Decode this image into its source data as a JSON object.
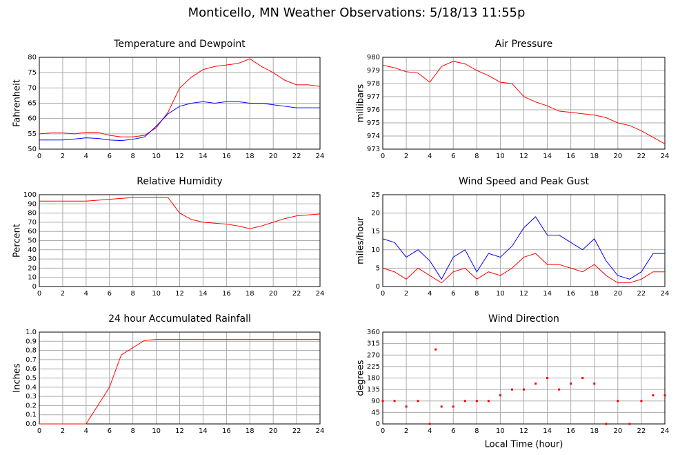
{
  "title": "Monticello, MN Weather Observations: 5/18/13 11:55p",
  "chart_data": [
    {
      "type": "line",
      "title": "Temperature and Dewpoint",
      "ylabel": "Fahrenheit",
      "x": [
        0,
        1,
        2,
        3,
        4,
        5,
        6,
        7,
        8,
        9,
        10,
        11,
        12,
        13,
        14,
        15,
        16,
        17,
        18,
        19,
        20,
        21,
        22,
        23,
        24
      ],
      "series": [
        {
          "color": "#ff0000",
          "values": [
            55,
            55.3,
            55.3,
            55,
            55.5,
            55.5,
            54.5,
            54,
            54,
            54.5,
            57,
            62,
            70,
            73.5,
            76,
            77,
            77.5,
            78,
            79.5,
            77,
            75,
            72.5,
            71,
            71,
            70.5
          ]
        },
        {
          "color": "#0000ff",
          "values": [
            53,
            53,
            53,
            53.3,
            53.7,
            53.5,
            53,
            52.8,
            53.2,
            54,
            57.5,
            61.5,
            64,
            65,
            65.5,
            65,
            65.5,
            65.5,
            65,
            65,
            64.5,
            64,
            63.5,
            63.5,
            63.5
          ]
        }
      ],
      "xlim": [
        0,
        24
      ],
      "xticks": [
        0,
        2,
        4,
        6,
        8,
        10,
        12,
        14,
        16,
        18,
        20,
        22,
        24
      ],
      "ylim": [
        50,
        80
      ],
      "yticks": [
        50,
        55,
        60,
        65,
        70,
        75,
        80
      ],
      "grid": true
    },
    {
      "type": "line",
      "title": "Air Pressure",
      "ylabel": "millibars",
      "x": [
        0,
        1,
        2,
        3,
        4,
        5,
        6,
        7,
        8,
        9,
        10,
        11,
        12,
        13,
        14,
        15,
        16,
        17,
        18,
        19,
        20,
        21,
        22,
        23,
        24
      ],
      "series": [
        {
          "color": "#ff0000",
          "values": [
            979.4,
            979.2,
            978.9,
            978.8,
            978.1,
            979.3,
            979.7,
            979.5,
            979,
            978.6,
            978.1,
            978,
            977,
            976.6,
            976.3,
            975.9,
            975.8,
            975.7,
            975.6,
            975.4,
            975,
            974.8,
            974.4,
            973.9,
            973.4
          ]
        }
      ],
      "xlim": [
        0,
        24
      ],
      "xticks": [
        0,
        2,
        4,
        6,
        8,
        10,
        12,
        14,
        16,
        18,
        20,
        22,
        24
      ],
      "ylim": [
        973,
        980
      ],
      "yticks": [
        973,
        974,
        975,
        976,
        977,
        978,
        979,
        980
      ],
      "grid": true
    },
    {
      "type": "line",
      "title": "Relative Humidity",
      "ylabel": "Percent",
      "x": [
        0,
        1,
        2,
        3,
        4,
        5,
        6,
        7,
        8,
        9,
        10,
        11,
        12,
        13,
        14,
        15,
        16,
        17,
        18,
        19,
        20,
        21,
        22,
        23,
        24
      ],
      "series": [
        {
          "color": "#ff0000",
          "values": [
            93,
            93,
            93,
            93,
            93,
            94,
            95,
            96,
            97,
            97,
            97,
            97,
            80,
            73,
            70,
            69,
            68,
            66,
            63,
            66,
            70,
            74,
            77,
            78,
            79
          ]
        }
      ],
      "xlim": [
        0,
        24
      ],
      "xticks": [
        0,
        2,
        4,
        6,
        8,
        10,
        12,
        14,
        16,
        18,
        20,
        22,
        24
      ],
      "ylim": [
        0,
        100
      ],
      "yticks": [
        0,
        10,
        20,
        30,
        40,
        50,
        60,
        70,
        80,
        90,
        100
      ],
      "grid": true
    },
    {
      "type": "line",
      "title": "Wind Speed and Peak Gust",
      "ylabel": "miles/hour",
      "x": [
        0,
        1,
        2,
        3,
        4,
        5,
        6,
        7,
        8,
        9,
        10,
        11,
        12,
        13,
        14,
        15,
        16,
        17,
        18,
        19,
        20,
        21,
        22,
        23,
        24
      ],
      "series": [
        {
          "color": "#0000ff",
          "values": [
            13,
            12,
            8,
            10,
            7,
            2,
            8,
            10,
            4,
            9,
            8,
            11,
            16,
            19,
            14,
            14,
            12,
            10,
            13,
            7,
            3,
            2,
            4,
            9,
            9
          ]
        },
        {
          "color": "#ff0000",
          "values": [
            5,
            4,
            2,
            5,
            3,
            1,
            4,
            5,
            2,
            4,
            3,
            5,
            8,
            9,
            6,
            6,
            5,
            4,
            6,
            3,
            1,
            1,
            2,
            4,
            4
          ]
        }
      ],
      "xlim": [
        0,
        24
      ],
      "xticks": [
        0,
        2,
        4,
        6,
        8,
        10,
        12,
        14,
        16,
        18,
        20,
        22,
        24
      ],
      "ylim": [
        0,
        25
      ],
      "yticks": [
        0,
        5,
        10,
        15,
        20,
        25
      ],
      "grid": true
    },
    {
      "type": "line",
      "title": "24 hour Accumulated Rainfall",
      "ylabel": "Inches",
      "x": [
        0,
        1,
        2,
        3,
        4,
        5,
        6,
        7,
        8,
        9,
        10,
        11,
        12,
        13,
        14,
        15,
        16,
        17,
        18,
        19,
        20,
        21,
        22,
        23,
        24
      ],
      "series": [
        {
          "color": "#ff0000",
          "values": [
            0,
            0,
            0,
            0,
            0,
            0.2,
            0.4,
            0.75,
            0.83,
            0.91,
            0.92,
            0.92,
            0.92,
            0.92,
            0.92,
            0.92,
            0.92,
            0.92,
            0.92,
            0.92,
            0.92,
            0.92,
            0.92,
            0.92,
            0.92
          ]
        }
      ],
      "xlim": [
        0,
        24
      ],
      "xticks": [
        0,
        2,
        4,
        6,
        8,
        10,
        12,
        14,
        16,
        18,
        20,
        22,
        24
      ],
      "ylim": [
        0,
        1
      ],
      "yticks": [
        {
          "value": 0,
          "label": "0.0"
        },
        0.1,
        0.2,
        0.3,
        0.4,
        0.5,
        0.6,
        0.7,
        0.8,
        0.9,
        {
          "value": 1,
          "label": "1.0"
        }
      ],
      "grid": true
    },
    {
      "type": "scatter",
      "title": "Wind Direction",
      "ylabel": "degrees",
      "xlabel": "Local Time (hour)",
      "x": [
        0,
        1,
        2,
        3,
        4,
        4.5,
        5,
        6,
        7,
        8,
        9,
        10,
        11,
        12,
        13,
        14,
        15,
        16,
        17,
        18,
        19,
        20,
        21,
        22,
        23,
        24
      ],
      "series": [
        {
          "color": "#ff0000",
          "values": [
            90,
            90,
            68,
            90,
            0,
            292,
            68,
            68,
            90,
            90,
            90,
            112,
            135,
            135,
            158,
            180,
            135,
            158,
            180,
            158,
            0,
            90,
            0,
            90,
            112,
            112
          ]
        }
      ],
      "xlim": [
        0,
        24
      ],
      "xticks": [
        0,
        2,
        4,
        6,
        8,
        10,
        12,
        14,
        16,
        18,
        20,
        22,
        24
      ],
      "ylim": [
        0,
        360
      ],
      "yticks": [
        0,
        45,
        90,
        135,
        180,
        225,
        270,
        315,
        360
      ],
      "grid": true
    }
  ]
}
